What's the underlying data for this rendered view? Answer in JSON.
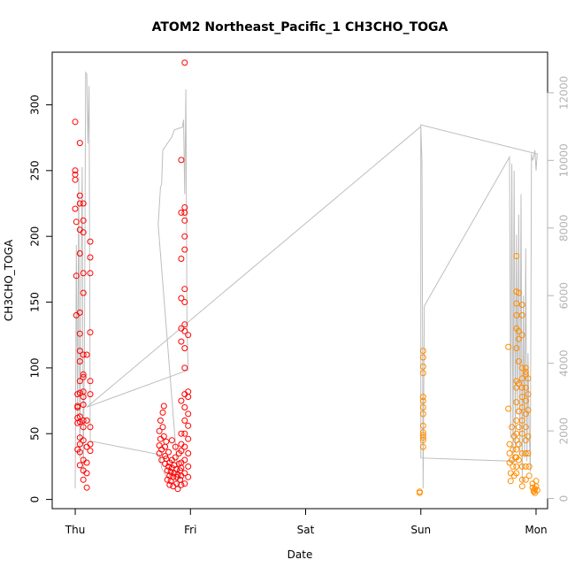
{
  "chart_data": {
    "type": "scatter",
    "title": "ATOM2 Northeast_Pacific_1 CH3CHO_TOGA",
    "xlabel": "Date",
    "ylabel": "CH3CHO_TOGA",
    "x_ticks": [
      {
        "label": "Thu",
        "day": 0
      },
      {
        "label": "Fri",
        "day": 1
      },
      {
        "label": "Sat",
        "day": 2
      },
      {
        "label": "Sun",
        "day": 3
      },
      {
        "label": "Mon",
        "day": 4
      }
    ],
    "xlim": [
      -0.2,
      4.1
    ],
    "ylim": [
      -7,
      340
    ],
    "y_ticks": [
      0,
      50,
      100,
      150,
      200,
      250,
      300
    ],
    "y2lim": [
      -300,
      13200
    ],
    "y2_ticks": [
      0,
      2000,
      4000,
      6000,
      8000,
      10000,
      12000
    ],
    "grid": false,
    "series": [
      {
        "color": "#ff0000",
        "marker": "open-circle",
        "points": [
          [
            0.0,
            287
          ],
          [
            0.0,
            250
          ],
          [
            0.0,
            247
          ],
          [
            0.0,
            243
          ],
          [
            0.0,
            221
          ],
          [
            0.01,
            211
          ],
          [
            0.01,
            170
          ],
          [
            0.01,
            140
          ],
          [
            0.02,
            80
          ],
          [
            0.02,
            71
          ],
          [
            0.02,
            70
          ],
          [
            0.02,
            62
          ],
          [
            0.02,
            58
          ],
          [
            0.02,
            38
          ],
          [
            0.04,
            271
          ],
          [
            0.04,
            231
          ],
          [
            0.04,
            225
          ],
          [
            0.04,
            205
          ],
          [
            0.04,
            187
          ],
          [
            0.04,
            142
          ],
          [
            0.04,
            126
          ],
          [
            0.04,
            113
          ],
          [
            0.04,
            105
          ],
          [
            0.04,
            90
          ],
          [
            0.04,
            81
          ],
          [
            0.04,
            63
          ],
          [
            0.04,
            59
          ],
          [
            0.04,
            47
          ],
          [
            0.04,
            42
          ],
          [
            0.04,
            36
          ],
          [
            0.04,
            26
          ],
          [
            0.07,
            225
          ],
          [
            0.07,
            212
          ],
          [
            0.07,
            203
          ],
          [
            0.07,
            172
          ],
          [
            0.07,
            157
          ],
          [
            0.07,
            110
          ],
          [
            0.07,
            95
          ],
          [
            0.07,
            93
          ],
          [
            0.07,
            82
          ],
          [
            0.07,
            78
          ],
          [
            0.07,
            72
          ],
          [
            0.07,
            60
          ],
          [
            0.07,
            55
          ],
          [
            0.07,
            45
          ],
          [
            0.07,
            30
          ],
          [
            0.07,
            22
          ],
          [
            0.07,
            15
          ],
          [
            0.1,
            110
          ],
          [
            0.1,
            60
          ],
          [
            0.1,
            40
          ],
          [
            0.1,
            28
          ],
          [
            0.1,
            20
          ],
          [
            0.1,
            9
          ],
          [
            0.13,
            196
          ],
          [
            0.13,
            184
          ],
          [
            0.13,
            172
          ],
          [
            0.13,
            127
          ],
          [
            0.13,
            90
          ],
          [
            0.13,
            80
          ],
          [
            0.13,
            55
          ],
          [
            0.13,
            42
          ],
          [
            0.13,
            37
          ],
          [
            0.73,
            35
          ],
          [
            0.73,
            41
          ],
          [
            0.73,
            52
          ],
          [
            0.74,
            60
          ],
          [
            0.74,
            46
          ],
          [
            0.75,
            38
          ],
          [
            0.75,
            30
          ],
          [
            0.76,
            66
          ],
          [
            0.76,
            55
          ],
          [
            0.77,
            71
          ],
          [
            0.77,
            48
          ],
          [
            0.78,
            40
          ],
          [
            0.78,
            33
          ],
          [
            0.78,
            27
          ],
          [
            0.79,
            44
          ],
          [
            0.79,
            31
          ],
          [
            0.8,
            22
          ],
          [
            0.8,
            15
          ],
          [
            0.81,
            36
          ],
          [
            0.81,
            25
          ],
          [
            0.82,
            28
          ],
          [
            0.82,
            18
          ],
          [
            0.82,
            11
          ],
          [
            0.83,
            21
          ],
          [
            0.83,
            14
          ],
          [
            0.84,
            45
          ],
          [
            0.84,
            30
          ],
          [
            0.84,
            24
          ],
          [
            0.85,
            17
          ],
          [
            0.85,
            10
          ],
          [
            0.86,
            20
          ],
          [
            0.86,
            26
          ],
          [
            0.87,
            40
          ],
          [
            0.87,
            32
          ],
          [
            0.88,
            17
          ],
          [
            0.88,
            23
          ],
          [
            0.88,
            12
          ],
          [
            0.89,
            8
          ],
          [
            0.89,
            19
          ],
          [
            0.9,
            35
          ],
          [
            0.9,
            27
          ],
          [
            0.91,
            15
          ],
          [
            0.91,
            22
          ],
          [
            0.92,
            258
          ],
          [
            0.92,
            218
          ],
          [
            0.92,
            183
          ],
          [
            0.92,
            153
          ],
          [
            0.92,
            130
          ],
          [
            0.92,
            120
          ],
          [
            0.92,
            75
          ],
          [
            0.92,
            50
          ],
          [
            0.92,
            42
          ],
          [
            0.92,
            37
          ],
          [
            0.92,
            28
          ],
          [
            0.92,
            24
          ],
          [
            0.92,
            18
          ],
          [
            0.92,
            11
          ],
          [
            0.95,
            332
          ],
          [
            0.95,
            222
          ],
          [
            0.95,
            218
          ],
          [
            0.95,
            212
          ],
          [
            0.95,
            200
          ],
          [
            0.95,
            190
          ],
          [
            0.95,
            160
          ],
          [
            0.95,
            150
          ],
          [
            0.95,
            133
          ],
          [
            0.95,
            128
          ],
          [
            0.95,
            115
          ],
          [
            0.95,
            100
          ],
          [
            0.95,
            80
          ],
          [
            0.95,
            70
          ],
          [
            0.95,
            60
          ],
          [
            0.95,
            50
          ],
          [
            0.95,
            40
          ],
          [
            0.95,
            30
          ],
          [
            0.95,
            20
          ],
          [
            0.95,
            12
          ],
          [
            0.98,
            125
          ],
          [
            0.98,
            82
          ],
          [
            0.98,
            78
          ],
          [
            0.98,
            65
          ],
          [
            0.98,
            56
          ],
          [
            0.98,
            46
          ],
          [
            0.98,
            35
          ],
          [
            0.98,
            25
          ],
          [
            0.98,
            17
          ]
        ]
      },
      {
        "color": "#ff8c00",
        "marker": "open-circle",
        "points": [
          [
            2.99,
            6
          ],
          [
            2.99,
            5
          ],
          [
            3.02,
            113
          ],
          [
            3.02,
            108
          ],
          [
            3.02,
            101
          ],
          [
            3.02,
            96
          ],
          [
            3.02,
            78
          ],
          [
            3.02,
            75
          ],
          [
            3.02,
            70
          ],
          [
            3.02,
            65
          ],
          [
            3.02,
            56
          ],
          [
            3.02,
            51
          ],
          [
            3.02,
            49
          ],
          [
            3.02,
            47
          ],
          [
            3.02,
            45
          ],
          [
            3.02,
            40
          ],
          [
            3.76,
            116
          ],
          [
            3.76,
            69
          ],
          [
            3.77,
            42
          ],
          [
            3.77,
            35
          ],
          [
            3.77,
            28
          ],
          [
            3.78,
            20
          ],
          [
            3.78,
            14
          ],
          [
            3.79,
            55
          ],
          [
            3.79,
            30
          ],
          [
            3.8,
            38
          ],
          [
            3.8,
            25
          ],
          [
            3.81,
            48
          ],
          [
            3.81,
            18
          ],
          [
            3.82,
            32
          ],
          [
            3.83,
            185
          ],
          [
            3.83,
            158
          ],
          [
            3.83,
            149
          ],
          [
            3.83,
            140
          ],
          [
            3.83,
            130
          ],
          [
            3.83,
            115
          ],
          [
            3.83,
            90
          ],
          [
            3.83,
            85
          ],
          [
            3.83,
            74
          ],
          [
            3.83,
            60
          ],
          [
            3.83,
            50
          ],
          [
            3.83,
            45
          ],
          [
            3.83,
            38
          ],
          [
            3.83,
            32
          ],
          [
            3.83,
            25
          ],
          [
            3.83,
            20
          ],
          [
            3.85,
            157
          ],
          [
            3.85,
            128
          ],
          [
            3.85,
            122
          ],
          [
            3.85,
            105
          ],
          [
            3.85,
            88
          ],
          [
            3.85,
            67
          ],
          [
            3.85,
            55
          ],
          [
            3.85,
            42
          ],
          [
            3.85,
            30
          ],
          [
            3.88,
            148
          ],
          [
            3.88,
            140
          ],
          [
            3.88,
            125
          ],
          [
            3.88,
            100
          ],
          [
            3.88,
            92
          ],
          [
            3.88,
            85
          ],
          [
            3.88,
            78
          ],
          [
            3.88,
            70
          ],
          [
            3.88,
            60
          ],
          [
            3.88,
            50
          ],
          [
            3.88,
            35
          ],
          [
            3.88,
            25
          ],
          [
            3.88,
            15
          ],
          [
            3.88,
            10
          ],
          [
            3.91,
            100
          ],
          [
            3.91,
            97
          ],
          [
            3.91,
            95
          ],
          [
            3.91,
            85
          ],
          [
            3.91,
            75
          ],
          [
            3.91,
            65
          ],
          [
            3.91,
            55
          ],
          [
            3.91,
            45
          ],
          [
            3.91,
            35
          ],
          [
            3.91,
            25
          ],
          [
            3.91,
            15
          ],
          [
            3.93,
            92
          ],
          [
            3.93,
            80
          ],
          [
            3.93,
            68
          ],
          [
            3.93,
            48
          ],
          [
            3.93,
            35
          ],
          [
            3.94,
            25
          ],
          [
            3.94,
            18
          ],
          [
            3.97,
            12
          ],
          [
            3.97,
            9
          ],
          [
            3.98,
            7
          ],
          [
            3.98,
            6
          ],
          [
            3.99,
            8
          ],
          [
            3.99,
            5
          ],
          [
            4.0,
            10
          ],
          [
            4.0,
            14
          ],
          [
            4.01,
            7
          ]
        ]
      }
    ],
    "secondary_series": {
      "color": "#bebebe",
      "axis": "right",
      "points": [
        [
          0.0,
          300
        ],
        [
          0.01,
          7500
        ],
        [
          0.02,
          2400
        ],
        [
          0.03,
          9500
        ],
        [
          0.04,
          1200
        ],
        [
          0.05,
          6500
        ],
        [
          0.06,
          9800
        ],
        [
          0.07,
          700
        ],
        [
          0.08,
          4500
        ],
        [
          0.09,
          12600
        ],
        [
          0.1,
          12550
        ],
        [
          0.11,
          10500
        ],
        [
          0.12,
          12200
        ],
        [
          0.13,
          1800
        ],
        [
          0.13,
          1700
        ],
        [
          0.73,
          1300
        ],
        [
          0.74,
          1200
        ],
        [
          0.75,
          900
        ],
        [
          0.8,
          600
        ],
        [
          0.85,
          800
        ],
        [
          0.88,
          500
        ],
        [
          0.9,
          300
        ],
        [
          0.72,
          8100
        ],
        [
          0.74,
          9200
        ],
        [
          0.75,
          9300
        ],
        [
          0.76,
          10300
        ],
        [
          0.78,
          10400
        ],
        [
          0.8,
          10500
        ],
        [
          0.82,
          10600
        ],
        [
          0.84,
          10700
        ],
        [
          0.86,
          10900
        ],
        [
          0.9,
          10950
        ],
        [
          0.93,
          10980
        ],
        [
          0.94,
          11200
        ],
        [
          0.95,
          9000
        ],
        [
          0.96,
          12100
        ],
        [
          0.97,
          5000
        ],
        [
          0.98,
          3800
        ],
        [
          0.1,
          2700
        ],
        [
          3.0,
          11000
        ],
        [
          3.01,
          10000
        ],
        [
          3.02,
          300
        ],
        [
          3.03,
          5700
        ],
        [
          3.77,
          10100
        ],
        [
          3.78,
          1800
        ],
        [
          3.79,
          9900
        ],
        [
          3.8,
          1000
        ],
        [
          3.81,
          9700
        ],
        [
          3.82,
          1500
        ],
        [
          3.83,
          7800
        ],
        [
          3.84,
          2500
        ],
        [
          3.85,
          8400
        ],
        [
          3.86,
          1300
        ],
        [
          3.87,
          9000
        ],
        [
          3.88,
          500
        ],
        [
          3.89,
          6000
        ],
        [
          3.9,
          1200
        ],
        [
          3.91,
          7400
        ],
        [
          3.92,
          1100
        ],
        [
          3.93,
          4300
        ],
        [
          3.94,
          2000
        ],
        [
          3.95,
          800
        ],
        [
          3.96,
          10200
        ],
        [
          3.97,
          10000
        ],
        [
          3.98,
          10100
        ],
        [
          3.99,
          10300
        ],
        [
          4.0,
          9700
        ],
        [
          4.01,
          10200
        ],
        [
          4.0,
          10200
        ],
        [
          3.0,
          11050
        ],
        [
          3.0,
          1200
        ],
        [
          3.83,
          1100
        ]
      ]
    }
  }
}
